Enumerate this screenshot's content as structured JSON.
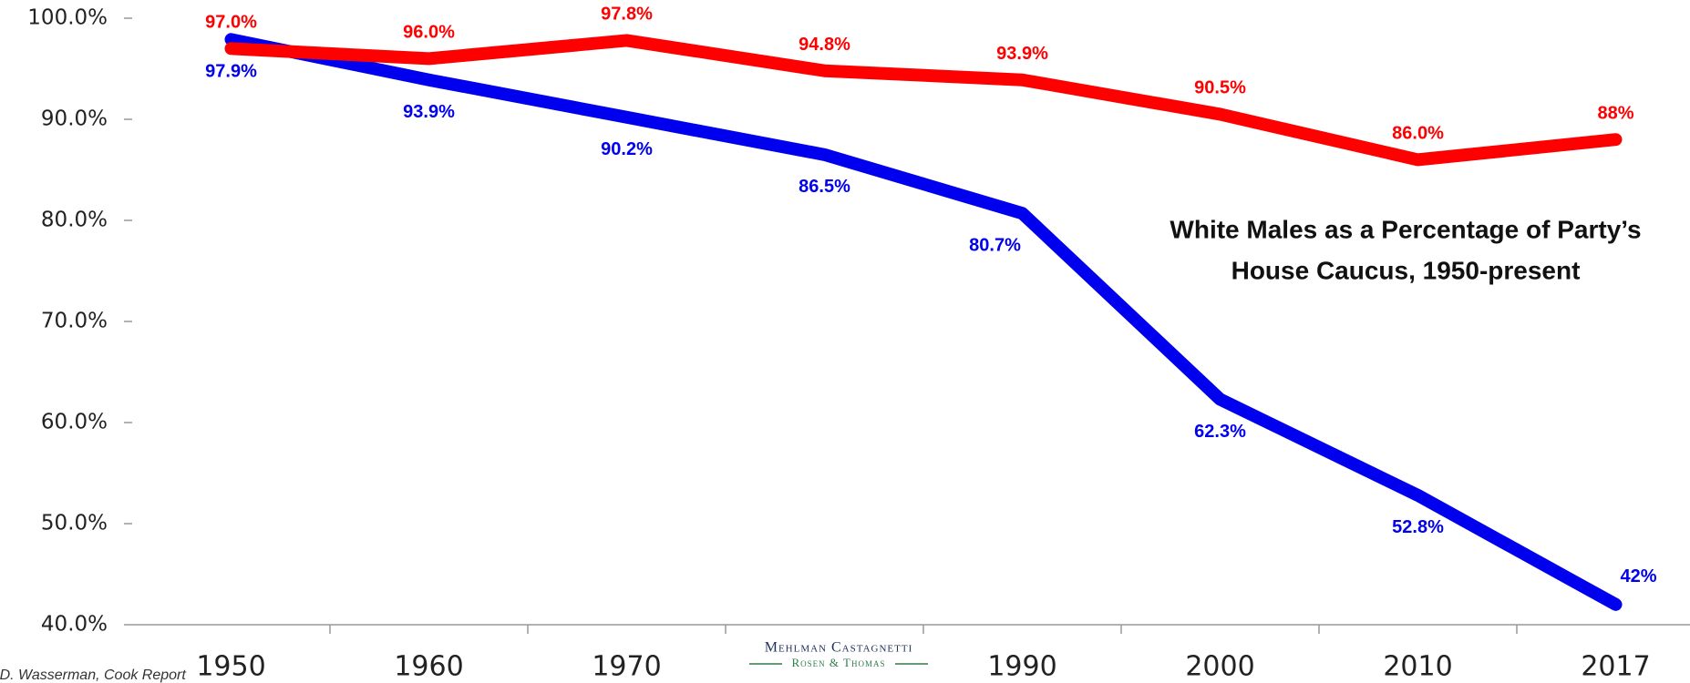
{
  "chart_data": {
    "type": "line",
    "title": [
      "White Males as a Percentage of Party’s",
      "House Caucus, 1950-present"
    ],
    "source": "Source: D. Wasserman, Cook Report",
    "logo": [
      "Mehlman Castagnetti",
      "Rosen & Thomas"
    ],
    "categories": [
      "1950",
      "1960",
      "1970",
      null,
      "1990",
      "2000",
      "2010",
      "2017"
    ],
    "series": [
      {
        "color": "#ff0000",
        "values": [
          97.0,
          96.0,
          97.8,
          94.8,
          93.9,
          90.5,
          86.0,
          88
        ],
        "value_labels": [
          "97.0%",
          "96.0%",
          "97.8%",
          "94.8%",
          "93.9%",
          "90.5%",
          "86.0%",
          "88%"
        ]
      },
      {
        "color": "#0000ee",
        "values": [
          97.9,
          93.9,
          90.2,
          86.5,
          80.7,
          62.3,
          52.8,
          42
        ],
        "value_labels": [
          "97.9%",
          "93.9%",
          "90.2%",
          "86.5%",
          "80.7%",
          "62.3%",
          "52.8%",
          "42%"
        ]
      }
    ],
    "ylim": [
      40,
      100
    ],
    "yticks": [
      {
        "value": 40,
        "label": "40.0%"
      },
      {
        "value": 50,
        "label": "50.0%"
      },
      {
        "value": 60,
        "label": "60.0%"
      },
      {
        "value": 70,
        "label": "70.0%"
      },
      {
        "value": 80,
        "label": "80.0%"
      },
      {
        "value": 90,
        "label": "90.0%"
      },
      {
        "value": 100,
        "label": "100.0%"
      }
    ]
  }
}
